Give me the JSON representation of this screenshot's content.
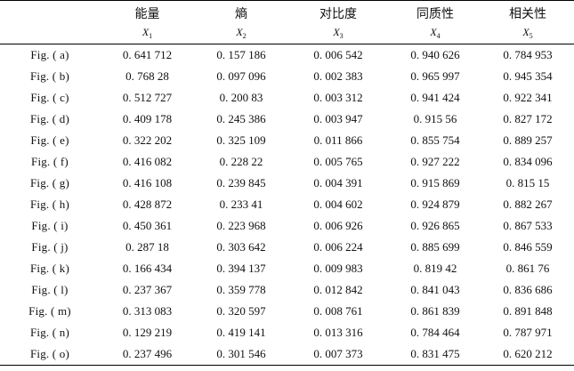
{
  "table": {
    "headers": [
      "",
      "能量",
      "熵",
      "对比度",
      "同质性",
      "相关性"
    ],
    "vars": [
      {
        "base": "",
        "sub": ""
      },
      {
        "base": "X",
        "sub": "1"
      },
      {
        "base": "X",
        "sub": "2"
      },
      {
        "base": "X",
        "sub": "3"
      },
      {
        "base": "X",
        "sub": "4"
      },
      {
        "base": "X",
        "sub": "5"
      }
    ],
    "rows": [
      [
        "Fig. ( a)",
        "0. 641 712",
        "0. 157 186",
        "0. 006 542",
        "0. 940 626",
        "0. 784 953"
      ],
      [
        "Fig. ( b)",
        "0. 768 28",
        "0. 097 096",
        "0. 002 383",
        "0. 965 997",
        "0. 945 354"
      ],
      [
        "Fig. ( c)",
        "0. 512 727",
        "0. 200 83",
        "0. 003 312",
        "0. 941 424",
        "0. 922 341"
      ],
      [
        "Fig. ( d)",
        "0. 409 178",
        "0. 245 386",
        "0. 003 947",
        "0. 915 56",
        "0. 827 172"
      ],
      [
        "Fig. ( e)",
        "0. 322 202",
        "0. 325 109",
        "0. 011 866",
        "0. 855 754",
        "0. 889 257"
      ],
      [
        "Fig. ( f)",
        "0. 416 082",
        "0. 228 22",
        "0. 005 765",
        "0. 927 222",
        "0. 834 096"
      ],
      [
        "Fig. ( g)",
        "0. 416 108",
        "0. 239 845",
        "0. 004 391",
        "0. 915 869",
        "0. 815 15"
      ],
      [
        "Fig. ( h)",
        "0. 428 872",
        "0. 233 41",
        "0. 004 602",
        "0. 924 879",
        "0. 882 267"
      ],
      [
        "Fig. ( i)",
        "0. 450 361",
        "0. 223 968",
        "0. 006 926",
        "0. 926 865",
        "0. 867 533"
      ],
      [
        "Fig. ( j)",
        "0. 287 18",
        "0. 303 642",
        "0. 006 224",
        "0. 885 699",
        "0. 846 559"
      ],
      [
        "Fig. ( k)",
        "0. 166 434",
        "0. 394 137",
        "0. 009 983",
        "0. 819 42",
        "0. 861 76"
      ],
      [
        "Fig. ( l)",
        "0. 237 367",
        "0. 359 778",
        "0. 012 842",
        "0. 841 043",
        "0. 836 686"
      ],
      [
        "Fig. ( m)",
        "0. 313 083",
        "0. 320 597",
        "0. 008 761",
        "0. 861 839",
        "0. 891 848"
      ],
      [
        "Fig. ( n)",
        "0. 129 219",
        "0. 419 141",
        "0. 013 316",
        "0. 784 464",
        "0. 787 971"
      ],
      [
        "Fig. ( o)",
        "0. 237 496",
        "0. 301 546",
        "0. 007 373",
        "0. 831 475",
        "0. 620 212"
      ]
    ]
  }
}
